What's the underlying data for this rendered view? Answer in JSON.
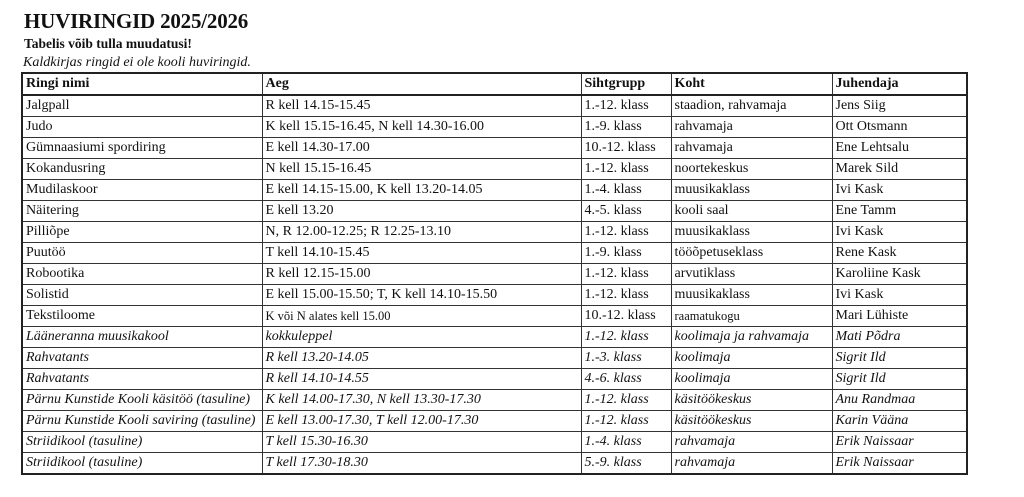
{
  "title": "HUVIRINGID 2025/2026",
  "subtitle": "Tabelis võib tulla muudatusi!",
  "note": "Kaldkirjas ringid ei ole kooli huviringid.",
  "table": {
    "headers": [
      "Ringi nimi",
      "Aeg",
      "Sihtgrupp",
      "Koht",
      "Juhendaja"
    ],
    "rows": [
      {
        "cells": [
          "Jalgpall",
          "R kell 14.15-15.45",
          "1.-12. klass",
          "staadion, rahvamaja",
          "Jens Siig"
        ],
        "italic": false
      },
      {
        "cells": [
          "Judo",
          "K kell 15.15-16.45, N kell 14.30-16.00",
          "1.-9. klass",
          "rahvamaja",
          "Ott Otsmann"
        ],
        "italic": false
      },
      {
        "cells": [
          "Gümnaasiumi spordiring",
          "E kell 14.30-17.00",
          "10.-12. klass",
          "rahvamaja",
          "Ene Lehtsalu"
        ],
        "italic": false
      },
      {
        "cells": [
          "Kokandusring",
          "N kell 15.15-16.45",
          "1.-12. klass",
          "noortekeskus",
          "Marek Sild"
        ],
        "italic": false
      },
      {
        "cells": [
          "Mudilaskoor",
          "E kell 14.15-15.00, K kell 13.20-14.05",
          "1.-4. klass",
          "muusikaklass",
          "Ivi Kask"
        ],
        "italic": false
      },
      {
        "cells": [
          "Näitering",
          "E kell 13.20",
          "4.-5. klass",
          "kooli saal",
          "Ene Tamm"
        ],
        "italic": false
      },
      {
        "cells": [
          "Pilliõpe",
          "N, R 12.00-12.25; R 12.25-13.10",
          "1.-12. klass",
          "muusikaklass",
          "Ivi Kask"
        ],
        "italic": false
      },
      {
        "cells": [
          "Puutöö",
          "T kell 14.10-15.45",
          "1.-9. klass",
          "tööõpetuseklass",
          "Rene Kask"
        ],
        "italic": false
      },
      {
        "cells": [
          "Robootika",
          "R kell 12.15-15.00",
          "1.-12. klass",
          "arvutiklass",
          "Karoliine Kask"
        ],
        "italic": false
      },
      {
        "cells": [
          "Solistid",
          "E kell 15.00-15.50; T, K kell 14.10-15.50",
          "1.-12. klass",
          "muusikaklass",
          "Ivi Kask"
        ],
        "italic": false
      },
      {
        "cells": [
          "Tekstiloome",
          "K või N alates kell 15.00",
          "10.-12. klass",
          "raamatukogu",
          "Mari Lühiste"
        ],
        "italic": false
      },
      {
        "cells": [
          "Lääneranna muusikakool",
          "kokkuleppel",
          "1.-12. klass",
          "koolimaja ja rahvamaja",
          "Mati Põdra"
        ],
        "italic": true
      },
      {
        "cells": [
          "Rahvatants",
          "R kell 13.20-14.05",
          "1.-3. klass",
          "koolimaja",
          "Sigrit Ild"
        ],
        "italic": true
      },
      {
        "cells": [
          "Rahvatants",
          "R kell 14.10-14.55",
          "4.-6. klass",
          "koolimaja",
          "Sigrit Ild"
        ],
        "italic": true
      },
      {
        "cells": [
          "Pärnu Kunstide Kooli käsitöö (tasuline)",
          "K kell 14.00-17.30, N kell 13.30-17.30",
          "1.-12. klass",
          "käsitöökeskus",
          "Anu Randmaa"
        ],
        "italic": true
      },
      {
        "cells": [
          "Pärnu Kunstide Kooli saviring (tasuline)",
          "E kell 13.00-17.30, T kell 12.00-17.30",
          "1.-12. klass",
          "käsitöökeskus",
          "Karin Vääna"
        ],
        "italic": true
      },
      {
        "cells": [
          "Striidikool (tasuline)",
          "T kell 15.30-16.30",
          "1.-4. klass",
          "rahvamaja",
          "Erik Naissaar"
        ],
        "italic": true
      },
      {
        "cells": [
          "Striidikool (tasuline)",
          "T kell 17.30-18.30",
          "5.-9. klass",
          "rahvamaja",
          "Erik Naissaar"
        ],
        "italic": true
      }
    ]
  }
}
